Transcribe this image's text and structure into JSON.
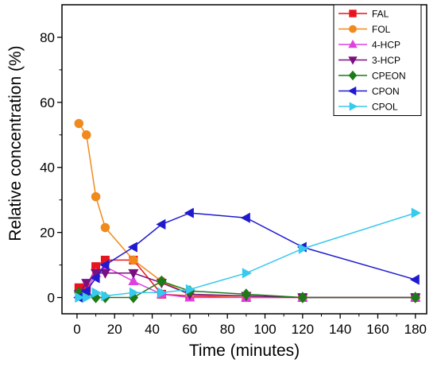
{
  "chart_data": {
    "type": "line",
    "title": "",
    "xlabel": "Time (minutes)",
    "ylabel": "Relative concentration (%)",
    "xlim": [
      -8,
      186
    ],
    "ylim": [
      -5,
      90
    ],
    "xticks": [
      0,
      20,
      40,
      60,
      80,
      100,
      120,
      140,
      160,
      180
    ],
    "yticks": [
      0,
      20,
      40,
      60,
      80
    ],
    "legend_position": "top-right",
    "grid": false,
    "series": [
      {
        "name": "FAL",
        "color": "#e8151f",
        "marker": "square",
        "x": [
          1,
          5,
          10,
          15,
          30,
          45,
          60,
          90,
          120,
          180
        ],
        "y": [
          3,
          3,
          9.5,
          11.5,
          11.5,
          1,
          0.5,
          0,
          0,
          0
        ]
      },
      {
        "name": "FOL",
        "color": "#f08a1c",
        "marker": "circle",
        "x": [
          1,
          5,
          10,
          15,
          30,
          45,
          60,
          90,
          120,
          180
        ],
        "y": [
          53.5,
          50,
          31,
          21.5,
          11.5,
          5,
          1,
          0,
          0,
          0
        ]
      },
      {
        "name": "4-HCP",
        "color": "#e040e0",
        "marker": "triangle-up",
        "x": [
          1,
          5,
          10,
          15,
          30,
          45,
          60,
          90,
          120,
          180
        ],
        "y": [
          1,
          2,
          7.5,
          9.5,
          5,
          1,
          0,
          0,
          0,
          0
        ]
      },
      {
        "name": "3-HCP",
        "color": "#7a1080",
        "marker": "triangle-down",
        "x": [
          1,
          5,
          10,
          15,
          30,
          45,
          60,
          90,
          120,
          180
        ],
        "y": [
          1,
          4.5,
          7.5,
          7.5,
          7.5,
          4.5,
          1,
          0.5,
          0,
          0
        ]
      },
      {
        "name": "CPEON",
        "color": "#1d7a18",
        "marker": "diamond",
        "x": [
          1,
          5,
          10,
          15,
          30,
          45,
          60,
          90,
          120,
          180
        ],
        "y": [
          1.5,
          1,
          0,
          0,
          0,
          5,
          2,
          1,
          0,
          0
        ]
      },
      {
        "name": "CPON",
        "color": "#1f1ad0",
        "marker": "triangle-left",
        "x": [
          1,
          5,
          10,
          15,
          30,
          45,
          60,
          90,
          120,
          180
        ],
        "y": [
          0,
          2,
          6,
          10,
          15.5,
          22.5,
          26,
          24.5,
          15.5,
          5.5
        ]
      },
      {
        "name": "CPOL",
        "color": "#37c9ee",
        "marker": "triangle-right",
        "x": [
          1,
          5,
          10,
          15,
          30,
          45,
          60,
          90,
          120,
          180
        ],
        "y": [
          0,
          0,
          1.5,
          0.5,
          1.5,
          1.5,
          2.5,
          7.5,
          15,
          26
        ]
      }
    ]
  }
}
